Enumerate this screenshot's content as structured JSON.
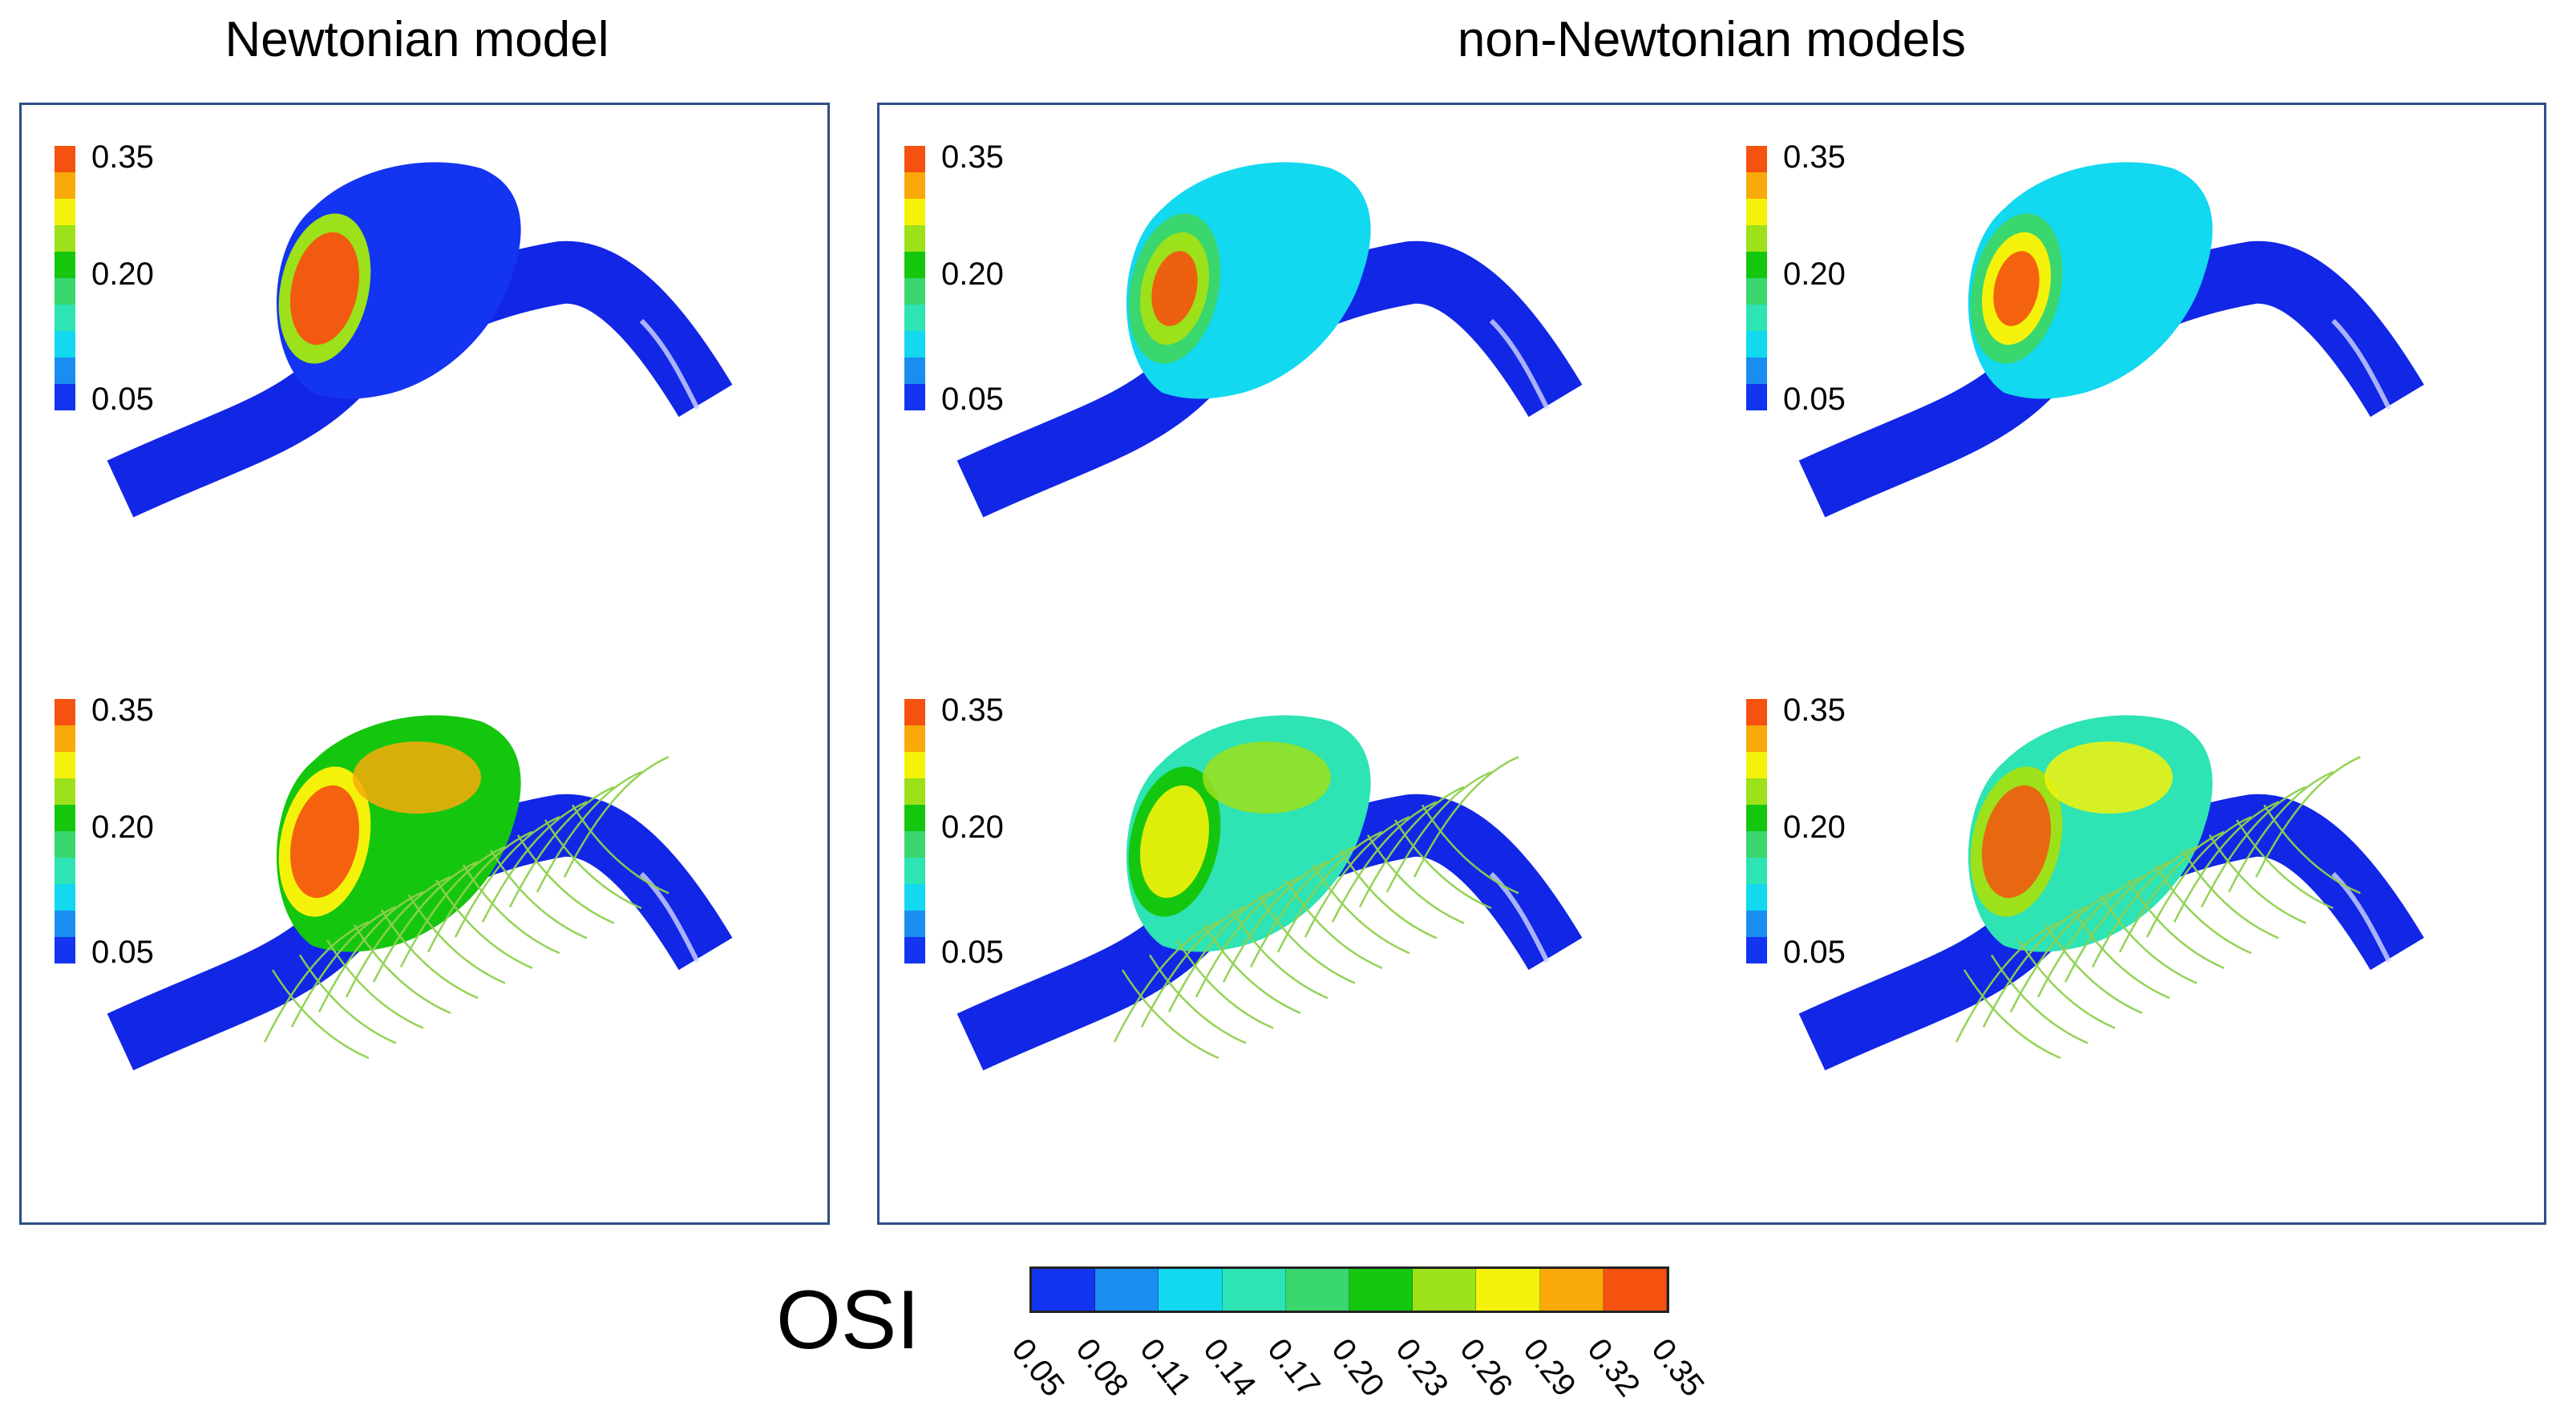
{
  "headings": {
    "left": "Newtonian model",
    "right": "non-Newtonian models"
  },
  "panel_legend": {
    "max": "0.35",
    "mid": "0.20",
    "min": "0.05"
  },
  "panels": [
    {
      "group": "Newtonian",
      "stent": false
    },
    {
      "group": "non-Newtonian",
      "stent": false
    },
    {
      "group": "non-Newtonian",
      "stent": false
    },
    {
      "group": "Newtonian",
      "stent": true
    },
    {
      "group": "non-Newtonian",
      "stent": true
    },
    {
      "group": "non-Newtonian",
      "stent": true
    }
  ],
  "colorbar": {
    "title": "OSI",
    "ticks": [
      "0.05",
      "0.08",
      "0.11",
      "0.14",
      "0.17",
      "0.20",
      "0.23",
      "0.26",
      "0.29",
      "0.32",
      "0.35"
    ],
    "colors": [
      "#1334f0",
      "#1a8df0",
      "#12d8f0",
      "#2ee3b4",
      "#3ad66e",
      "#15c60f",
      "#9ce11a",
      "#f4f20b",
      "#f9aa0a",
      "#f55210"
    ]
  }
}
